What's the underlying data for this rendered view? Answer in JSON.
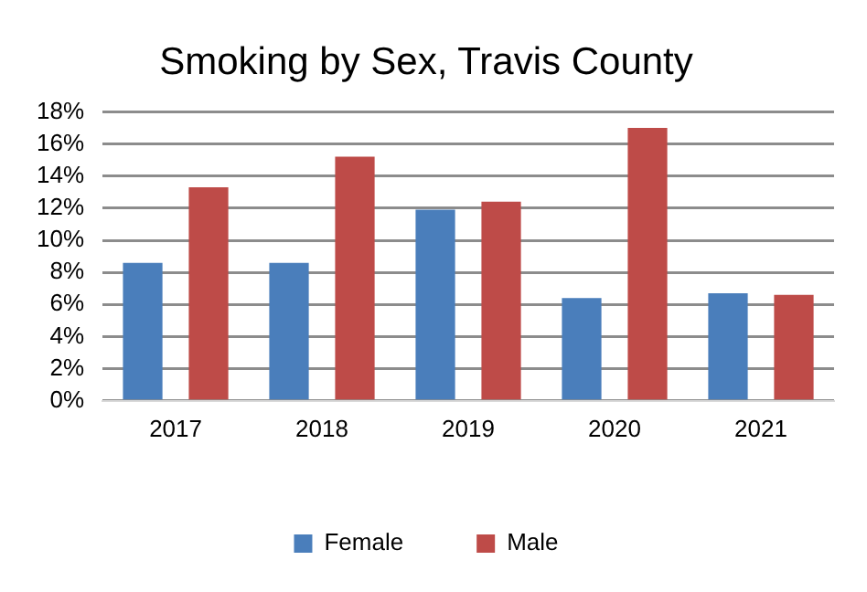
{
  "chart_data": {
    "type": "bar",
    "title": "Smoking by Sex, Travis County",
    "categories": [
      "2017",
      "2018",
      "2019",
      "2020",
      "2021"
    ],
    "series": [
      {
        "name": "Female",
        "color": "#4a7ebb",
        "values": [
          8.6,
          8.6,
          11.9,
          6.4,
          6.7
        ]
      },
      {
        "name": "Male",
        "color": "#be4b48",
        "values": [
          13.3,
          15.2,
          12.4,
          17.0,
          6.6
        ]
      }
    ],
    "ylim": [
      0,
      18
    ],
    "yticks": [
      {
        "value": 0,
        "label": "0%"
      },
      {
        "value": 2,
        "label": "2%"
      },
      {
        "value": 4,
        "label": "4%"
      },
      {
        "value": 6,
        "label": "6%"
      },
      {
        "value": 8,
        "label": "8%"
      },
      {
        "value": 10,
        "label": "10%"
      },
      {
        "value": 12,
        "label": "12%"
      },
      {
        "value": 14,
        "label": "14%"
      },
      {
        "value": 16,
        "label": "16%"
      },
      {
        "value": 18,
        "label": "18%"
      }
    ],
    "grid": "y",
    "legend": "bottom"
  }
}
